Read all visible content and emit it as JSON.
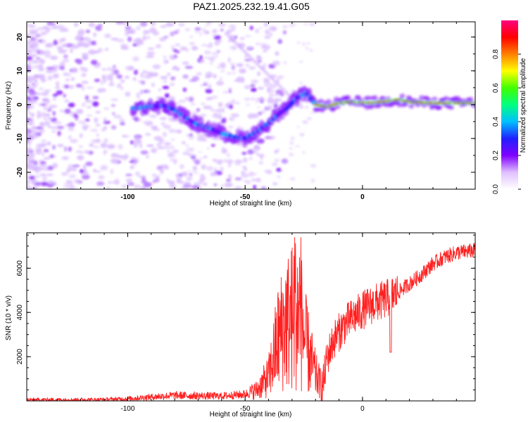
{
  "title": "PAZ1.2025.232.19.41.G05",
  "chart_data": [
    {
      "type": "heatmap",
      "xlabel": "Height of straight line (km)",
      "ylabel": "Frequency (Hz)",
      "xlim": [
        -143,
        48
      ],
      "ylim": [
        -25,
        24.5
      ],
      "xticks": [
        -100,
        -50,
        0
      ],
      "yticks": [
        -20,
        -10,
        0,
        10,
        20
      ],
      "colorbar": {
        "label": "Normalized spectral amplitude",
        "range": [
          0,
          1
        ],
        "ticks": [
          "0.0",
          "0.2",
          "0.4",
          "0.6",
          "0.8"
        ],
        "colormap": [
          "#ffffff",
          "#e0c0ff",
          "#8000ff",
          "#2020ff",
          "#00c0ff",
          "#00ff80",
          "#40ff00",
          "#ffff00",
          "#ff8000",
          "#ff0000",
          "#ff0080"
        ]
      },
      "ridge": [
        [
          -96,
          -1
        ],
        [
          -90,
          -0.5
        ],
        [
          -85,
          -0.2
        ],
        [
          -80,
          -1.5
        ],
        [
          -75,
          -4
        ],
        [
          -70,
          -6
        ],
        [
          -65,
          -7
        ],
        [
          -60,
          -8.5
        ],
        [
          -55,
          -9.5
        ],
        [
          -50,
          -10
        ],
        [
          -45,
          -8
        ],
        [
          -40,
          -5.5
        ],
        [
          -36,
          -3
        ],
        [
          -32,
          -1
        ],
        [
          -28,
          2
        ],
        [
          -24,
          3.5
        ],
        [
          -20,
          0
        ],
        [
          -15,
          -0.6
        ],
        [
          -10,
          0.5
        ],
        [
          -5,
          0.8
        ],
        [
          0,
          0.6
        ],
        [
          5,
          0.6
        ],
        [
          10,
          1
        ],
        [
          15,
          1.5
        ],
        [
          20,
          0.8
        ],
        [
          30,
          0.5
        ],
        [
          40,
          0.5
        ],
        [
          48,
          0.5
        ]
      ]
    },
    {
      "type": "line",
      "xlabel": "Height of straight line (km)",
      "ylabel": "SNR (10 * v/v)",
      "xlim": [
        -143,
        48
      ],
      "ylim": [
        0,
        7600
      ],
      "xticks": [
        -100,
        -50,
        0
      ],
      "yticks": [
        2000,
        4000,
        6000
      ],
      "color": "#ff2020",
      "trend": [
        [
          -143,
          50
        ],
        [
          -110,
          60
        ],
        [
          -100,
          100
        ],
        [
          -90,
          180
        ],
        [
          -80,
          250
        ],
        [
          -70,
          230
        ],
        [
          -60,
          220
        ],
        [
          -50,
          300
        ],
        [
          -45,
          500
        ],
        [
          -40,
          1100
        ],
        [
          -36,
          2800
        ],
        [
          -33,
          3500
        ],
        [
          -30,
          3800
        ],
        [
          -27,
          4200
        ],
        [
          -24,
          2500
        ],
        [
          -20,
          1200
        ],
        [
          -17,
          600
        ],
        [
          -15,
          2000
        ],
        [
          -12,
          2800
        ],
        [
          -8,
          3400
        ],
        [
          -5,
          3700
        ],
        [
          0,
          4100
        ],
        [
          5,
          4400
        ],
        [
          10,
          4600
        ],
        [
          15,
          4900
        ],
        [
          20,
          5300
        ],
        [
          25,
          5700
        ],
        [
          30,
          6200
        ],
        [
          35,
          6500
        ],
        [
          40,
          6700
        ],
        [
          48,
          6800
        ]
      ]
    }
  ]
}
